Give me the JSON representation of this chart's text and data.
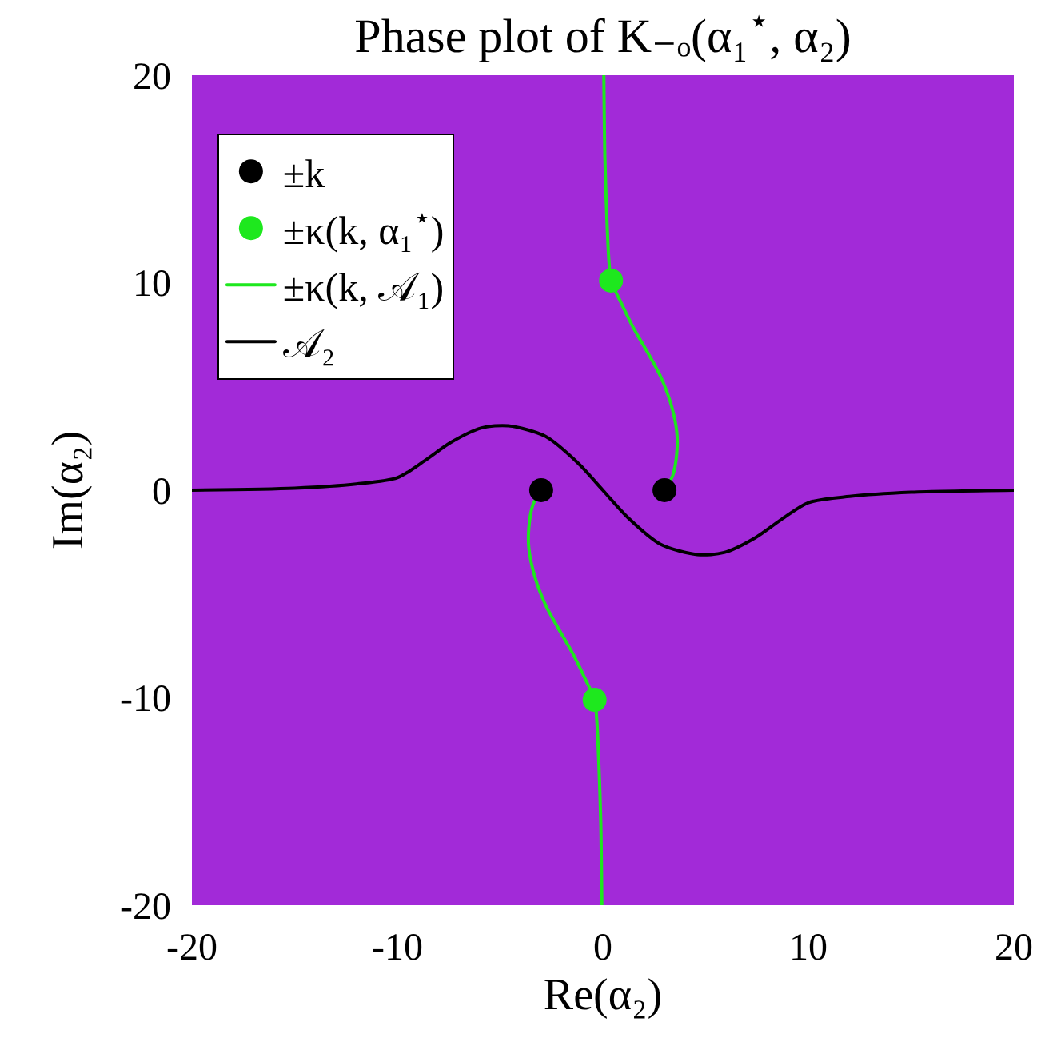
{
  "chart_data": {
    "type": "line",
    "title": "Phase plot of K₋ₒ(α₁$^{⋆}$, α₂)",
    "xlabel": "Re(α₂)",
    "ylabel": "Im(α₂)",
    "xlim": [
      -20,
      20
    ],
    "xticks": [
      -20,
      -10,
      0,
      10,
      20
    ],
    "ylim": [
      -20,
      20
    ],
    "yticks": [
      -20,
      -10,
      0,
      10,
      20
    ],
    "grid": false,
    "legend": "top left",
    "series": [
      {
        "name": "±k",
        "type": "scatter",
        "marker": "circle",
        "color": "#000000",
        "x": [
          -3,
          3
        ],
        "values": [
          0,
          0
        ]
      },
      {
        "name": "±κ(k, α₁$^{⋆}$)",
        "type": "scatter",
        "marker": "circle",
        "color": "#1ee81e",
        "x": [
          0.4,
          -0.4
        ],
        "values": [
          10.1,
          -10.1
        ]
      },
      {
        "name": "±κ(k, 𝒜₁)",
        "type": "line",
        "color": "#1ee81e",
        "x": [
          0.05,
          0.1,
          0.2,
          0.3,
          0.4,
          0.9,
          1.5,
          2.2,
          2.8,
          3.3,
          3.6,
          3.6,
          3.4,
          3,
          0,
          -3,
          -3.4,
          -3.6,
          -3.6,
          -3.3,
          -2.8,
          -2.2,
          -1.5,
          -0.9,
          -0.4,
          -0.3,
          -0.2,
          -0.1,
          -0.05
        ],
        "values": [
          20,
          16,
          13,
          11,
          10.1,
          9,
          7.8,
          6.6,
          5.5,
          4.2,
          2.8,
          1.8,
          0.7,
          0,
          null,
          0,
          -0.7,
          -1.8,
          -2.8,
          -4.2,
          -5.5,
          -6.6,
          -7.8,
          -9,
          -10.1,
          -11,
          -13,
          -16,
          -20
        ]
      },
      {
        "name": "𝒜₂",
        "type": "line",
        "color": "#000000",
        "x": [
          -20,
          -15,
          -12,
          -10,
          -8.7,
          -7.4,
          -5.9,
          -4.6,
          -2.8,
          -1.2,
          0,
          1.2,
          2.8,
          4.6,
          5.9,
          7.4,
          8.7,
          10,
          12,
          15,
          20
        ],
        "values": [
          0,
          0.1,
          0.3,
          0.6,
          1.4,
          2.3,
          3.0,
          3.1,
          2.6,
          1.3,
          0,
          -1.3,
          -2.6,
          -3.1,
          -3.0,
          -2.3,
          -1.4,
          -0.6,
          -0.3,
          -0.1,
          0
        ]
      }
    ]
  }
}
